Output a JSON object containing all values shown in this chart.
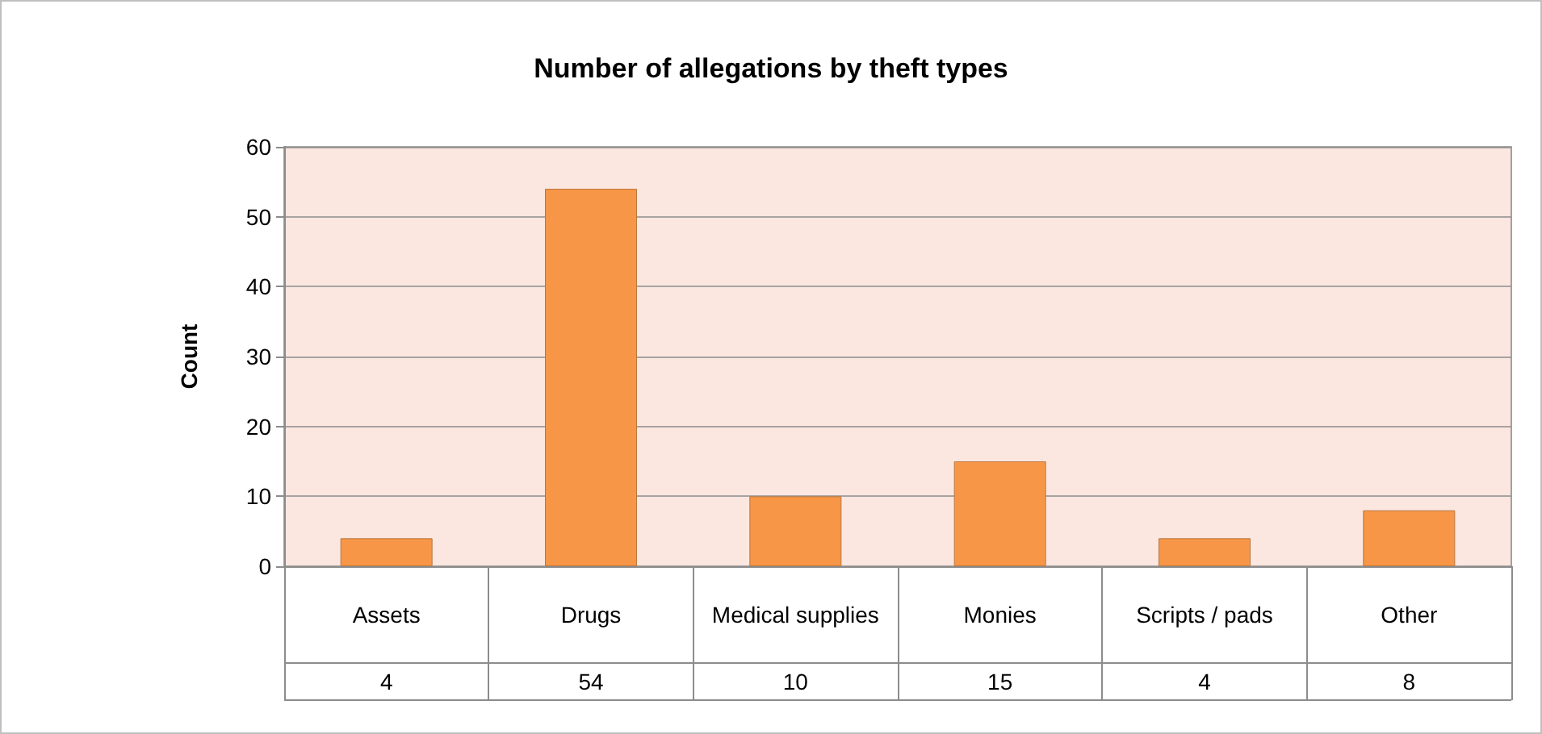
{
  "chart_data": {
    "type": "bar",
    "title": "Number of allegations by theft types",
    "ylabel": "Count",
    "categories": [
      "Assets",
      "Drugs",
      "Medical supplies",
      "Monies",
      "Scripts / pads",
      "Other"
    ],
    "values": [
      4,
      54,
      10,
      15,
      4,
      8
    ],
    "color": "#f79646",
    "ylim": [
      0,
      60
    ],
    "yticks": [
      0,
      10,
      20,
      30,
      40,
      50,
      60
    ],
    "grid": "y",
    "data_labels": true
  }
}
